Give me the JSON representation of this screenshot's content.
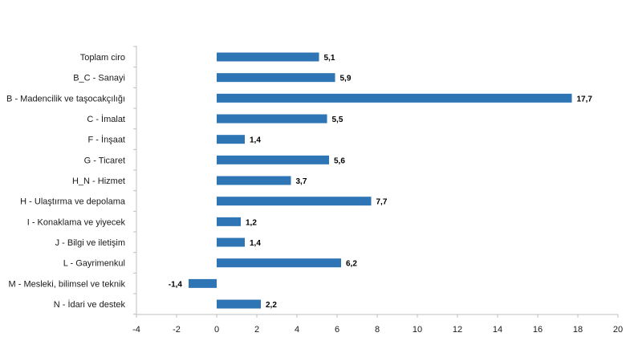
{
  "chart_data": {
    "type": "bar",
    "orientation": "horizontal",
    "categories": [
      "Toplam ciro",
      "B_C - Sanayi",
      "B - Madencilik ve taşocakçılığı",
      "C - İmalat",
      "F - İnşaat",
      "G - Ticaret",
      "H_N - Hizmet",
      "H - Ulaştırma ve depolama",
      "I - Konaklama ve yiyecek",
      "J - Bilgi ve iletişim",
      "L - Gayrimenkul",
      "M - Mesleki, bilimsel ve teknik",
      "N - İdari ve destek"
    ],
    "values": [
      5.1,
      5.9,
      17.7,
      5.5,
      1.4,
      5.6,
      3.7,
      7.7,
      1.2,
      1.4,
      6.2,
      -1.4,
      2.2
    ],
    "value_labels": [
      "5,1",
      "5,9",
      "17,7",
      "5,5",
      "1,4",
      "5,6",
      "3,7",
      "7,7",
      "1,2",
      "1,4",
      "6,2",
      "-1,4",
      "2,2"
    ],
    "xlim": [
      -4,
      20
    ],
    "xticks": [
      -4,
      -2,
      0,
      2,
      4,
      6,
      8,
      10,
      12,
      14,
      16,
      18,
      20
    ],
    "xtick_labels": [
      "-4",
      "-2",
      "0",
      "2",
      "4",
      "6",
      "8",
      "10",
      "12",
      "14",
      "16",
      "18",
      "20"
    ],
    "title": "",
    "xlabel": "",
    "ylabel": "",
    "grid": false,
    "legend": "none",
    "bar_color": "#2E75B6",
    "axis_color": "#BFBFBF"
  }
}
